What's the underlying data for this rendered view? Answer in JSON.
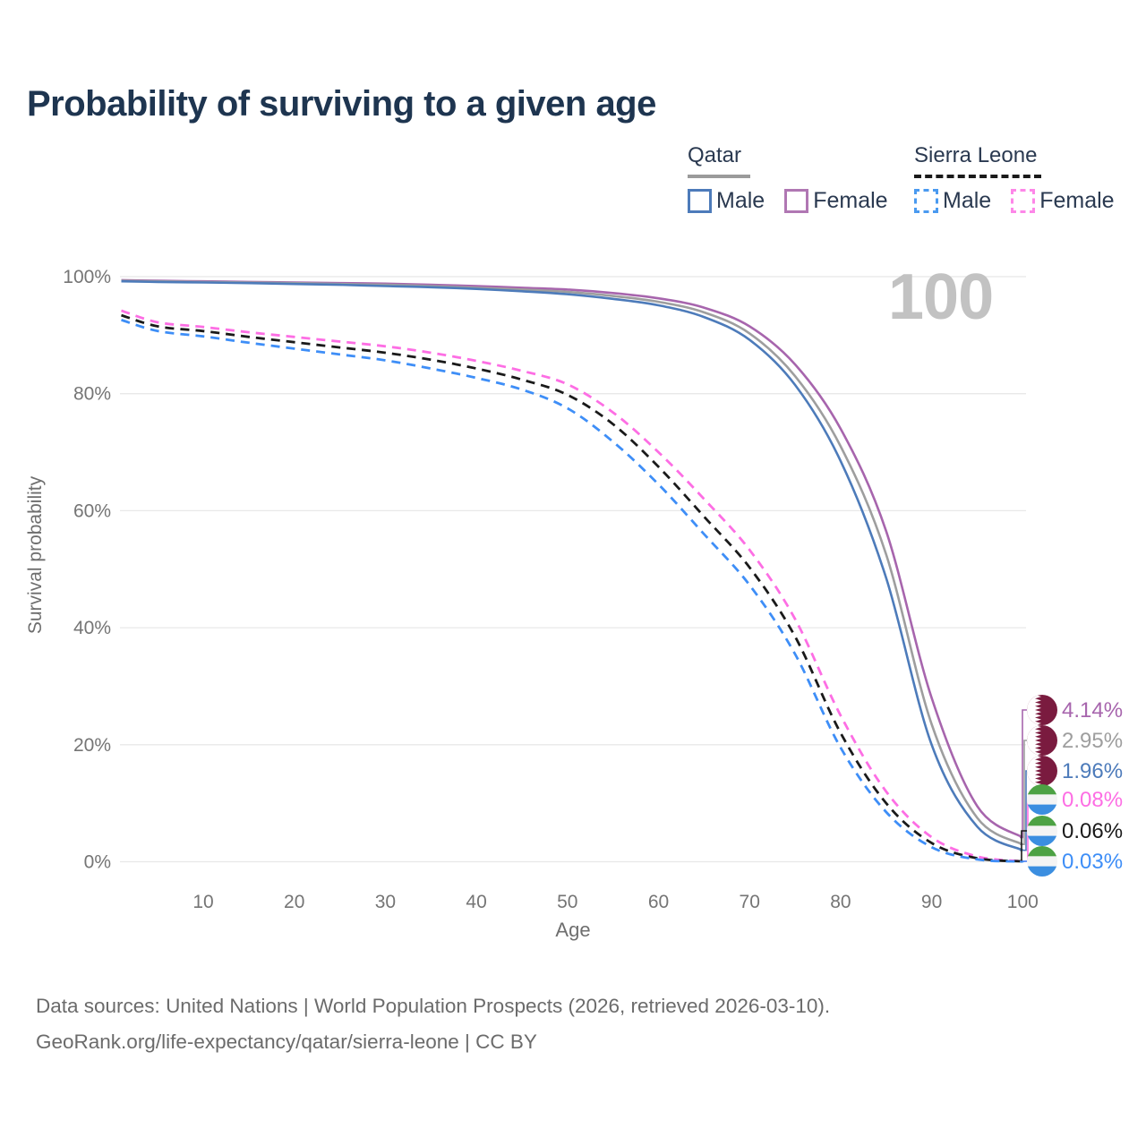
{
  "title": "Probability of surviving to a given age",
  "watermark": "100",
  "legend": {
    "groups": [
      {
        "label": "Qatar",
        "underline_style": "solid",
        "underline_color": "#9b9b9b",
        "items": [
          {
            "label": "Male",
            "color": "#4d7bba",
            "style": "solid"
          },
          {
            "label": "Female",
            "color": "#b077b3",
            "style": "solid"
          }
        ]
      },
      {
        "label": "Sierra Leone",
        "underline_style": "dashed",
        "underline_color": "#1a1a1a",
        "items": [
          {
            "label": "Male",
            "color": "#4a9af0",
            "style": "dashed"
          },
          {
            "label": "Female",
            "color": "#fd87e8",
            "style": "dashed"
          }
        ]
      }
    ]
  },
  "chart_data": {
    "type": "line",
    "title": "Probability of surviving to a given age",
    "xlabel": "Age",
    "ylabel": "Survival probability",
    "xlim": [
      1,
      100
    ],
    "ylim": [
      0,
      100
    ],
    "grid": "horizontal-only",
    "x_ticks": [
      10,
      20,
      30,
      40,
      50,
      60,
      70,
      80,
      90,
      100
    ],
    "y_ticks": [
      0,
      20,
      40,
      60,
      80,
      100
    ],
    "y_tick_suffix": "%",
    "x": [
      1,
      5,
      10,
      15,
      20,
      25,
      30,
      35,
      40,
      45,
      50,
      55,
      60,
      65,
      70,
      75,
      80,
      85,
      90,
      95,
      100
    ],
    "series": [
      {
        "name": "Qatar Female",
        "country": "Qatar",
        "sex": "Female",
        "color": "#a765ad",
        "style": "solid",
        "flag": "qatar",
        "end_label": "4.14%",
        "values": [
          99.4,
          99.3,
          99.2,
          99.1,
          99.0,
          98.9,
          98.8,
          98.6,
          98.4,
          98.1,
          97.8,
          97.2,
          96.3,
          94.7,
          91.5,
          85.0,
          74.0,
          56.5,
          28.0,
          9.5,
          4.14
        ]
      },
      {
        "name": "Qatar Both sexes",
        "country": "Qatar",
        "sex": "Both",
        "color": "#9e9e9e",
        "style": "solid",
        "flag": "qatar",
        "end_label": "2.95%",
        "values": [
          99.3,
          99.2,
          99.1,
          99.0,
          98.9,
          98.75,
          98.6,
          98.4,
          98.1,
          97.8,
          97.4,
          96.7,
          95.7,
          93.9,
          90.3,
          83.0,
          71.0,
          52.5,
          23.5,
          7.5,
          2.95
        ]
      },
      {
        "name": "Qatar Male",
        "country": "Qatar",
        "sex": "Male",
        "color": "#4d7bba",
        "style": "solid",
        "flag": "qatar",
        "end_label": "1.96%",
        "values": [
          99.2,
          99.1,
          99.0,
          98.9,
          98.75,
          98.6,
          98.4,
          98.2,
          97.9,
          97.5,
          97.0,
          96.2,
          95.1,
          93.1,
          89.2,
          81.5,
          68.5,
          48.5,
          20.0,
          6.0,
          1.96
        ]
      },
      {
        "name": "Sierra Leone Female",
        "country": "Sierra Leone",
        "sex": "Female",
        "color": "#fd6ee4",
        "style": "dashed",
        "flag": "sierra-leone",
        "end_label": "0.08%",
        "values": [
          94.2,
          92.2,
          91.4,
          90.5,
          89.7,
          88.9,
          88.1,
          87.0,
          85.6,
          83.9,
          81.6,
          76.8,
          70.0,
          62.0,
          53.3,
          41.5,
          25.0,
          12.0,
          4.2,
          0.9,
          0.08
        ]
      },
      {
        "name": "Sierra Leone Both sexes",
        "country": "Sierra Leone",
        "sex": "Both",
        "color": "#1a1a1a",
        "style": "dashed",
        "flag": "sierra-leone",
        "end_label": "0.06%",
        "values": [
          93.4,
          91.5,
          90.7,
          89.7,
          88.8,
          87.9,
          87.0,
          85.8,
          84.3,
          82.4,
          79.8,
          74.8,
          67.5,
          59.0,
          50.3,
          38.5,
          22.0,
          10.0,
          3.2,
          0.6,
          0.06
        ]
      },
      {
        "name": "Sierra Leone Male",
        "country": "Sierra Leone",
        "sex": "Male",
        "color": "#3e8ef7",
        "style": "dashed",
        "flag": "sierra-leone",
        "end_label": "0.03%",
        "values": [
          92.6,
          90.7,
          89.8,
          88.7,
          87.7,
          86.7,
          85.7,
          84.3,
          82.7,
          80.7,
          77.5,
          71.8,
          64.5,
          56.0,
          47.3,
          35.5,
          19.5,
          8.5,
          2.5,
          0.4,
          0.03
        ]
      }
    ],
    "flag_colors": {
      "qatar_maroon": "#7a1b3f",
      "qatar_white": "#ffffff",
      "sl_green": "#4da244",
      "sl_white": "#f4f4f4",
      "sl_blue": "#3b8ee0"
    }
  },
  "footer": {
    "line1": "Data sources: United Nations | World Population Prospects (2026, retrieved 2026-03-10).",
    "line2": "GeoRank.org/life-expectancy/qatar/sierra-leone | CC BY"
  }
}
